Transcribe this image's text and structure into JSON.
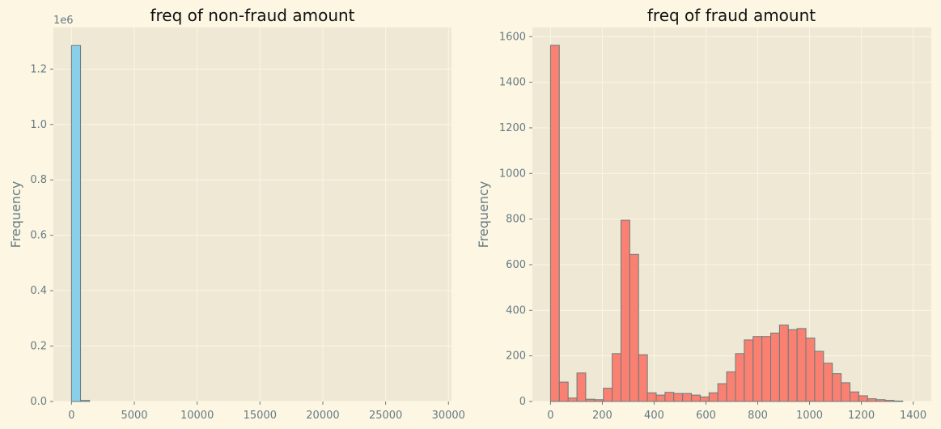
{
  "chart_data": [
    {
      "type": "bar",
      "title": "freq of non-fraud amount",
      "xlabel": "",
      "ylabel": "Frequency",
      "y_offset_label": "1e6",
      "xlim": [
        -1440,
        30240
      ],
      "ylim": [
        0,
        1.35
      ],
      "xticks": [
        0,
        5000,
        10000,
        15000,
        20000,
        25000,
        30000
      ],
      "xtick_labels": [
        "0",
        "5000",
        "10000",
        "15000",
        "20000",
        "25000",
        "30000"
      ],
      "yticks": [
        0.0,
        0.2,
        0.4,
        0.6,
        0.8,
        1.0,
        1.2
      ],
      "ytick_labels": [
        "0.0",
        "0.2",
        "0.4",
        "0.6",
        "0.8",
        "1.0",
        "1.2"
      ],
      "grid": true,
      "color": "#89cfea",
      "bin_width": 720,
      "bins": [
        {
          "x0": 0,
          "value": 1.285
        },
        {
          "x0": 720,
          "value": 0.004
        }
      ]
    },
    {
      "type": "bar",
      "title": "freq of fraud amount",
      "xlabel": "",
      "ylabel": "Frequency",
      "xlim": [
        -70,
        1470
      ],
      "ylim": [
        0,
        1640
      ],
      "xticks": [
        0,
        200,
        400,
        600,
        800,
        1000,
        1200,
        1400
      ],
      "xtick_labels": [
        "0",
        "200",
        "400",
        "600",
        "800",
        "1000",
        "1200",
        "1400"
      ],
      "yticks": [
        0,
        200,
        400,
        600,
        800,
        1000,
        1200,
        1400,
        1600
      ],
      "ytick_labels": [
        "0",
        "200",
        "400",
        "600",
        "800",
        "1000",
        "1200",
        "1400",
        "1600"
      ],
      "grid": true,
      "color": "#fa8072",
      "bin_start": 0,
      "bin_width": 34,
      "values": [
        1562,
        85,
        15,
        125,
        10,
        8,
        58,
        210,
        795,
        645,
        205,
        38,
        28,
        40,
        35,
        35,
        28,
        20,
        38,
        78,
        130,
        210,
        270,
        285,
        285,
        300,
        335,
        315,
        320,
        278,
        220,
        168,
        122,
        82,
        42,
        25,
        12,
        8,
        5,
        2
      ]
    }
  ]
}
